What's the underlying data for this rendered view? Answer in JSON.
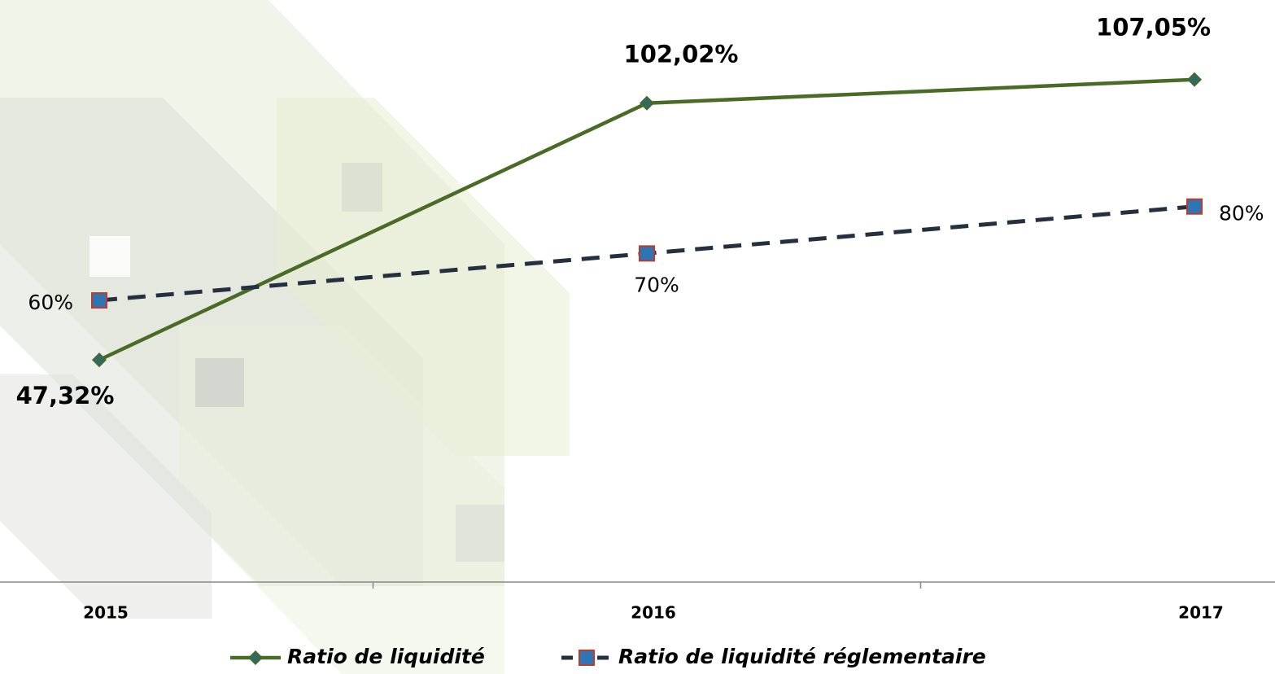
{
  "chart_data": {
    "type": "line",
    "categories": [
      "2015",
      "2016",
      "2017"
    ],
    "series": [
      {
        "name": "Ratio de liquidité",
        "color": "#4a6b26",
        "values": [
          47.32,
          102.02,
          107.05
        ],
        "value_labels": [
          "47,32%",
          "102,02%",
          "107,05%"
        ]
      },
      {
        "name": "Ratio de liquidité réglementaire",
        "color": "#243040",
        "values": [
          60,
          70,
          80
        ],
        "value_labels": [
          "60%",
          "70%",
          "80%"
        ]
      }
    ],
    "ylim": [
      0,
      124
    ]
  }
}
